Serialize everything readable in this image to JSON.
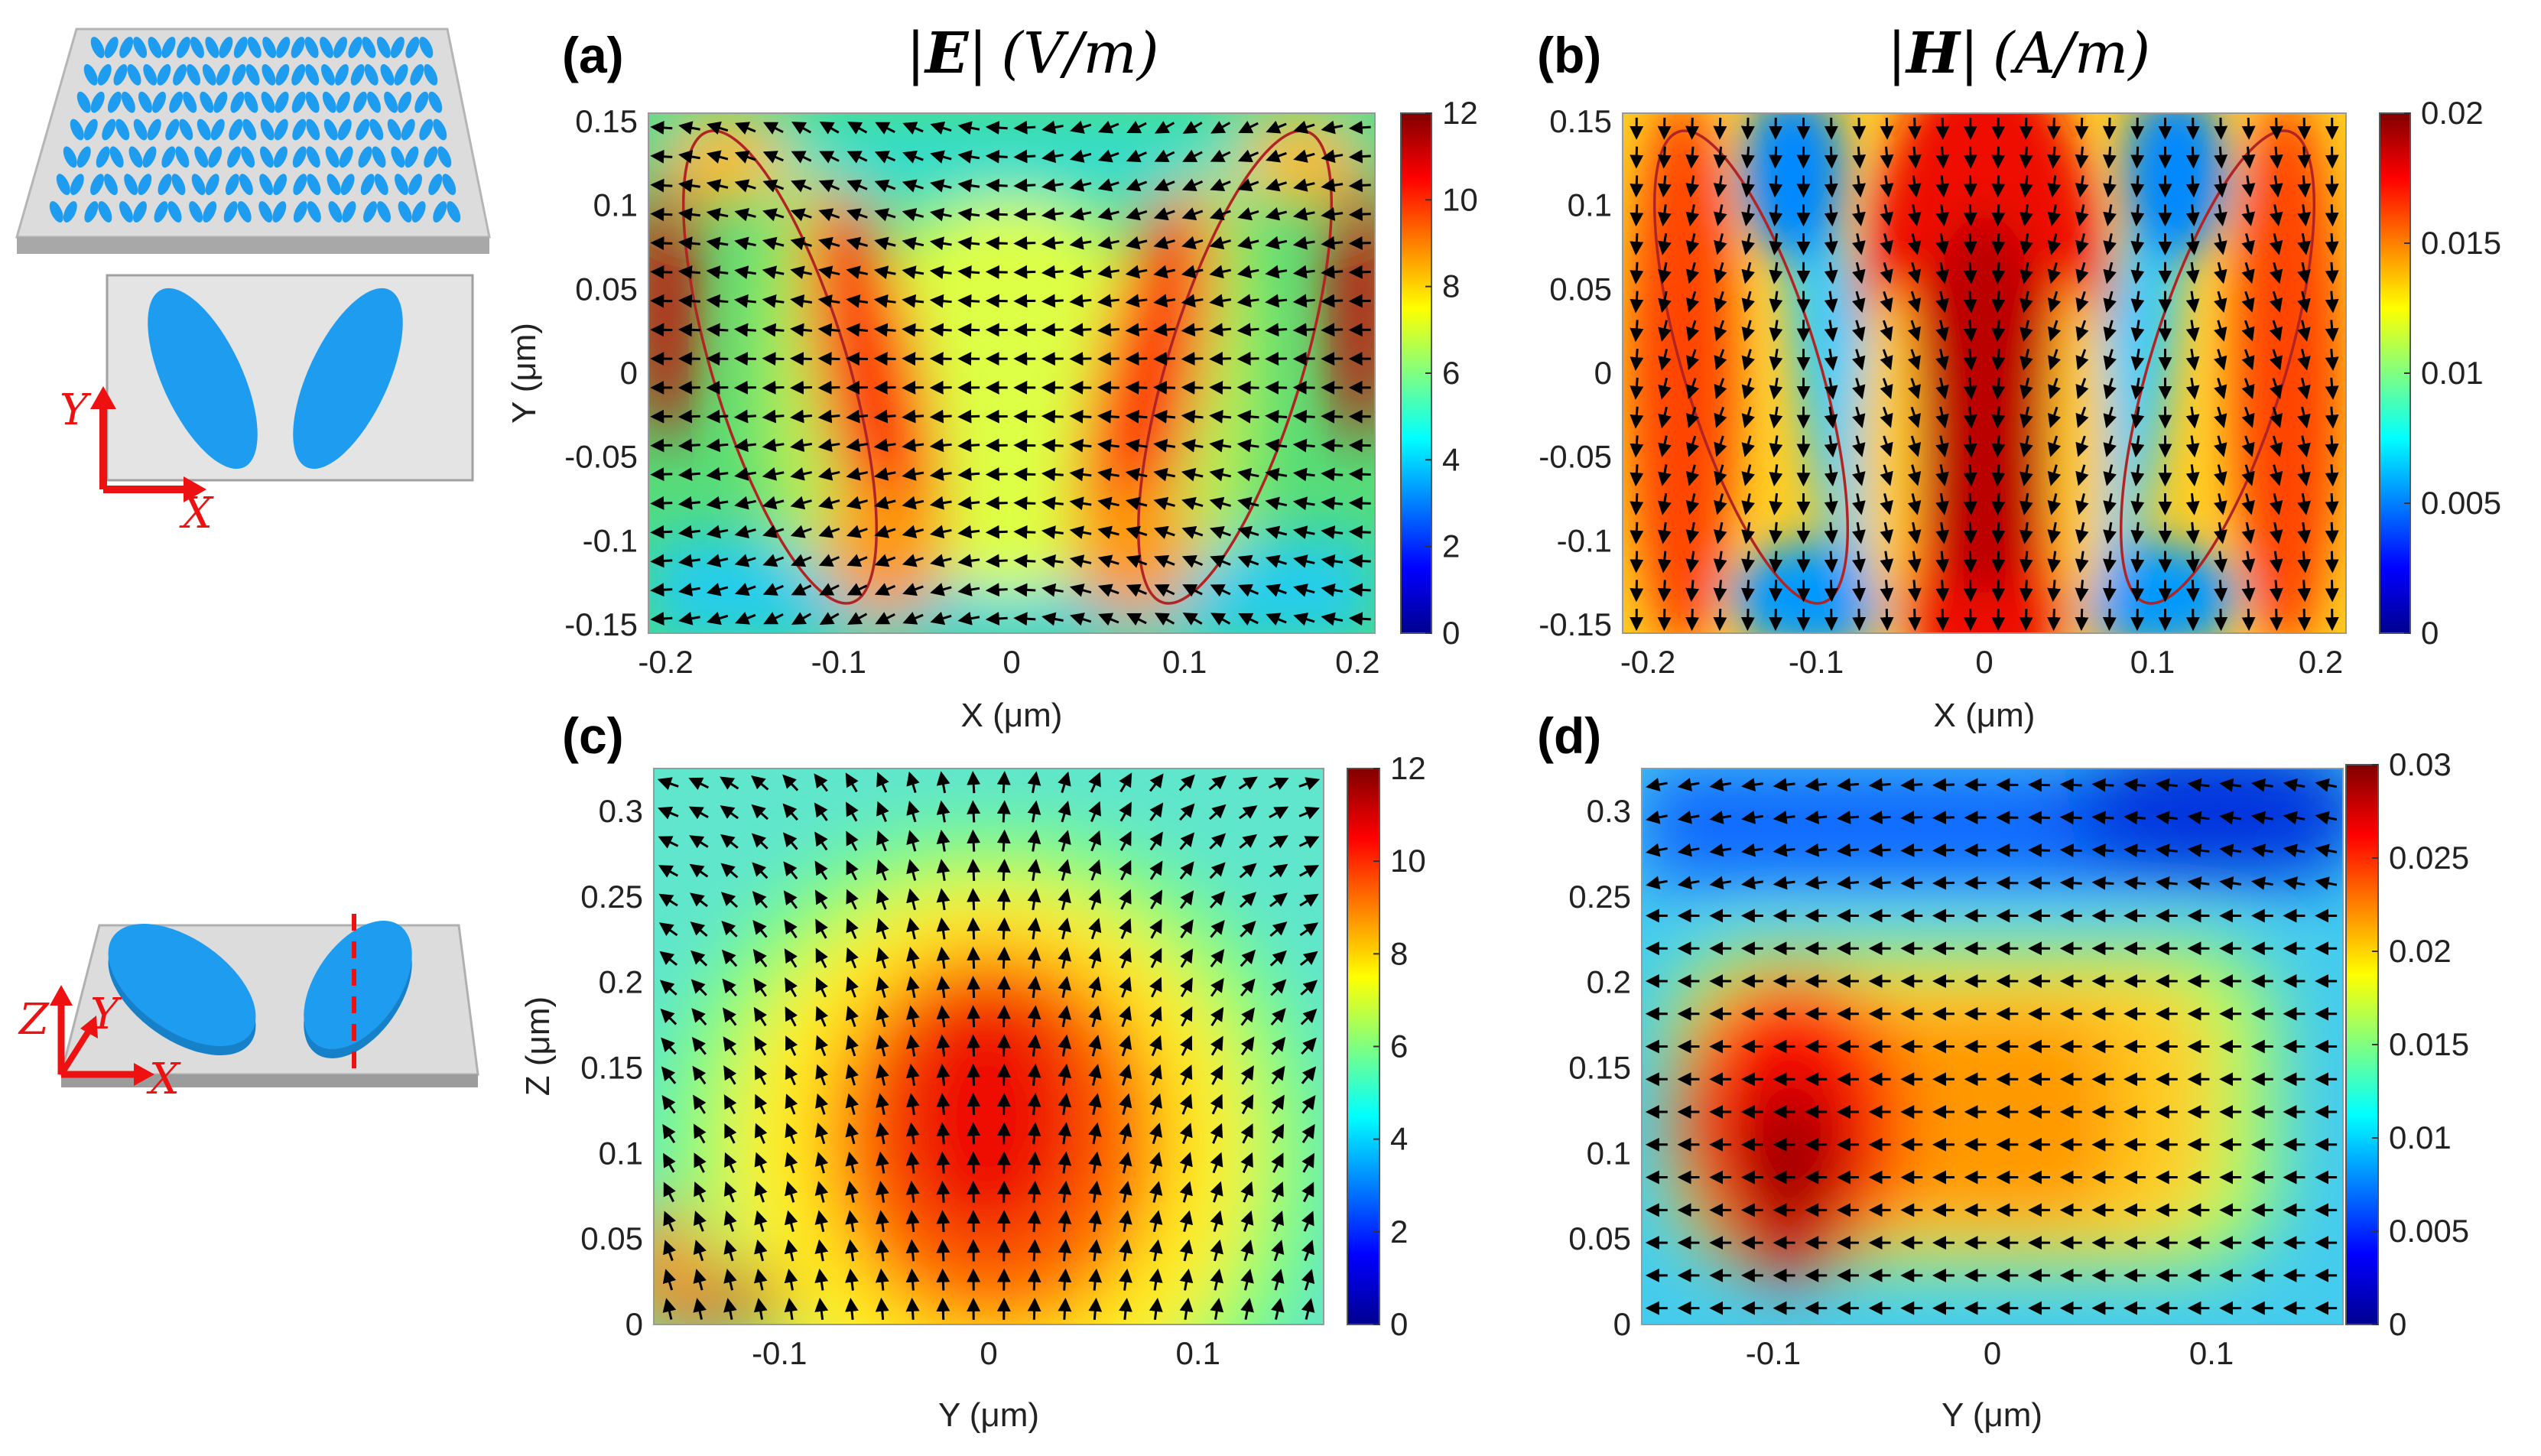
{
  "colors": {
    "particle": "#1e9cf0",
    "substrate": "#d6d6d6",
    "axis_arrow": "#ee1111",
    "contour": "#b02424",
    "colormap": [
      "#00008f",
      "#0000ff",
      "#0080ff",
      "#00ffff",
      "#80ff80",
      "#ffff00",
      "#ff8000",
      "#ff0000",
      "#800000"
    ]
  },
  "schematic": {
    "axes_top": {
      "y": "Y",
      "x": "X"
    },
    "axes_bottom": {
      "z": "Z",
      "y": "Y",
      "x": "X"
    }
  },
  "chart_data": [
    {
      "type": "heatmap",
      "panel": "(a)",
      "title": {
        "bar": "|",
        "sym": "E",
        "unit": "(V/m)"
      },
      "field": "electric field magnitude with in-plane vector arrows",
      "xlabel": "X (μm)",
      "ylabel": "Y (μm)",
      "xlim": [
        -0.21,
        0.21
      ],
      "ylim": [
        -0.155,
        0.155
      ],
      "xticks": [
        "-0.2",
        "-0.1",
        "0",
        "0.1",
        "0.2"
      ],
      "xtick_values": [
        -0.2,
        -0.1,
        0,
        0.1,
        0.2
      ],
      "yticks": [
        "0.15",
        "0.1",
        "0.05",
        "0",
        "-0.05",
        "-0.1",
        "-0.15"
      ],
      "ytick_values": [
        0.15,
        0.1,
        0.05,
        0,
        -0.05,
        -0.1,
        -0.15
      ],
      "colorbar": {
        "min": 0,
        "max": 12,
        "ticks": [
          "12",
          "10",
          "8",
          "6",
          "4",
          "2",
          "0"
        ],
        "tick_values": [
          12,
          10,
          8,
          6,
          4,
          2,
          0
        ]
      },
      "overlay": "two tilted ellipse outlines at x = ±0.135 μm",
      "arrow_grid": {
        "columns": 26,
        "rows": 18,
        "pattern": "horizontal flow curving around ellipses"
      }
    },
    {
      "type": "heatmap",
      "panel": "(b)",
      "title": {
        "bar": "|",
        "sym": "H",
        "unit": "(A/m)"
      },
      "field": "magnetic field magnitude with in-plane vector arrows",
      "xlabel": "X (μm)",
      "ylabel": "",
      "xlim": [
        -0.215,
        0.215
      ],
      "ylim": [
        -0.155,
        0.155
      ],
      "xticks": [
        "-0.2",
        "-0.1",
        "0",
        "0.1",
        "0.2"
      ],
      "xtick_values": [
        -0.2,
        -0.1,
        0,
        0.1,
        0.2
      ],
      "yticks": [
        "0.15",
        "0.1",
        "0.05",
        "0",
        "-0.05",
        "-0.1",
        "-0.15"
      ],
      "ytick_values": [
        0.15,
        0.1,
        0.05,
        0,
        -0.05,
        -0.1,
        -0.15
      ],
      "colorbar": {
        "min": 0,
        "max": 0.02,
        "ticks": [
          "0.02",
          "0.015",
          "0.01",
          "0.005",
          "0"
        ],
        "tick_values": [
          0.02,
          0.015,
          0.01,
          0.005,
          0
        ]
      },
      "overlay": "two tilted ellipse outlines at x = ±0.135 μm",
      "arrow_grid": {
        "columns": 26,
        "rows": 18,
        "pattern": "vertical flow"
      }
    },
    {
      "type": "heatmap",
      "panel": "(c)",
      "field": "electric field magnitude in Y-Z plane with vector arrows",
      "xlabel": "Y (μm)",
      "ylabel": "Z (μm)",
      "xlim": [
        -0.16,
        0.16
      ],
      "ylim": [
        0,
        0.325
      ],
      "xticks": [
        "-0.1",
        "0",
        "0.1"
      ],
      "xtick_values": [
        -0.1,
        0,
        0.1
      ],
      "yticks": [
        "0.3",
        "0.25",
        "0.2",
        "0.15",
        "0.1",
        "0.05",
        "0"
      ],
      "ytick_values": [
        0.3,
        0.25,
        0.2,
        0.15,
        0.1,
        0.05,
        0
      ],
      "colorbar": {
        "min": 0,
        "max": 12,
        "ticks": [
          "12",
          "10",
          "8",
          "6",
          "4",
          "2",
          "0"
        ],
        "tick_values": [
          12,
          10,
          8,
          6,
          4,
          2,
          0
        ]
      },
      "arrow_grid": {
        "columns": 22,
        "rows": 19,
        "pattern": "upward vertical flow, diverging near top"
      }
    },
    {
      "type": "heatmap",
      "panel": "(d)",
      "field": "magnetic field magnitude in Y-Z plane with vector arrows",
      "xlabel": "Y (μm)",
      "ylabel": "",
      "xlim": [
        -0.16,
        0.16
      ],
      "ylim": [
        0,
        0.325
      ],
      "xticks": [
        "-0.1",
        "0",
        "0.1"
      ],
      "xtick_values": [
        -0.1,
        0,
        0.1
      ],
      "yticks": [
        "0.3",
        "0.25",
        "0.2",
        "0.15",
        "0.1",
        "0.05",
        "0"
      ],
      "ytick_values": [
        0.3,
        0.25,
        0.2,
        0.15,
        0.1,
        0.05,
        0
      ],
      "colorbar": {
        "min": 0,
        "max": 0.03,
        "ticks": [
          "0.03",
          "0.025",
          "0.02",
          "0.015",
          "0.01",
          "0.005",
          "0"
        ],
        "tick_values": [
          0.03,
          0.025,
          0.02,
          0.015,
          0.01,
          0.005,
          0
        ]
      },
      "arrow_grid": {
        "columns": 22,
        "rows": 17,
        "pattern": "horizontal flow"
      }
    }
  ]
}
